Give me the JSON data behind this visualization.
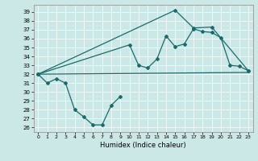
{
  "xlabel": "Humidex (Indice chaleur)",
  "background_color": "#cbe8e7",
  "line_color": "#1a6b6b",
  "xlim": [
    -0.5,
    23.5
  ],
  "ylim": [
    25.5,
    39.8
  ],
  "yticks": [
    26,
    27,
    28,
    29,
    30,
    31,
    32,
    33,
    34,
    35,
    36,
    37,
    38,
    39
  ],
  "xticks": [
    0,
    1,
    2,
    3,
    4,
    5,
    6,
    7,
    8,
    9,
    10,
    11,
    12,
    13,
    14,
    15,
    16,
    17,
    18,
    19,
    20,
    21,
    22,
    23
  ],
  "curve_low": {
    "x": [
      0,
      1,
      2,
      3,
      4,
      5,
      6,
      7,
      8,
      9
    ],
    "y": [
      32.0,
      31.0,
      31.5,
      31.0,
      28.0,
      27.2,
      26.3,
      26.3,
      28.5,
      29.5
    ]
  },
  "curve_upper": {
    "x": [
      0,
      10,
      11,
      12,
      13,
      14,
      15,
      16,
      17,
      18,
      19,
      20,
      21,
      22,
      23
    ],
    "y": [
      32.0,
      35.3,
      33.0,
      32.7,
      33.7,
      36.3,
      35.1,
      35.4,
      37.1,
      36.8,
      36.7,
      36.1,
      33.0,
      32.9,
      32.4
    ]
  },
  "curve_spike": {
    "x": [
      0,
      15,
      17,
      19,
      23
    ],
    "y": [
      32.0,
      39.2,
      37.2,
      37.3,
      32.4
    ]
  },
  "curve_flat": {
    "x": [
      0,
      23
    ],
    "y": [
      32.0,
      32.2
    ]
  }
}
